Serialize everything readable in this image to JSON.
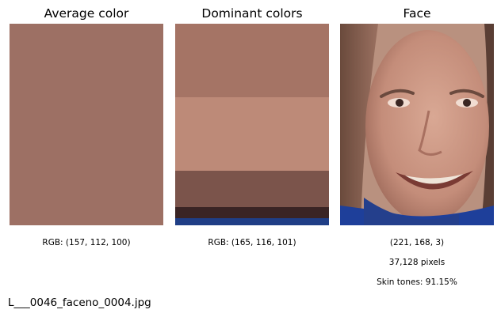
{
  "average_panel": {
    "title": "Average color",
    "color": "#9d7064",
    "caption": "RGB: (157, 112, 100)"
  },
  "dominant_panel": {
    "title": "Dominant colors",
    "colors": [
      {
        "hex": "#a57465",
        "share": 0.365
      },
      {
        "hex": "#bd8a78",
        "share": 0.365
      },
      {
        "hex": "#7b544b",
        "share": 0.18
      },
      {
        "hex": "#3a2424",
        "share": 0.055
      },
      {
        "hex": "#1f3e86",
        "share": 0.035
      }
    ],
    "caption": "RGB: (165, 116, 101)"
  },
  "face_panel": {
    "title": "Face",
    "caption_rgb": "(221, 168, 3)",
    "caption_pixels": "37,128 pixels",
    "caption_skin": "Skin tones: 91.15%"
  },
  "filename": "L___0046_faceno_0004.jpg"
}
